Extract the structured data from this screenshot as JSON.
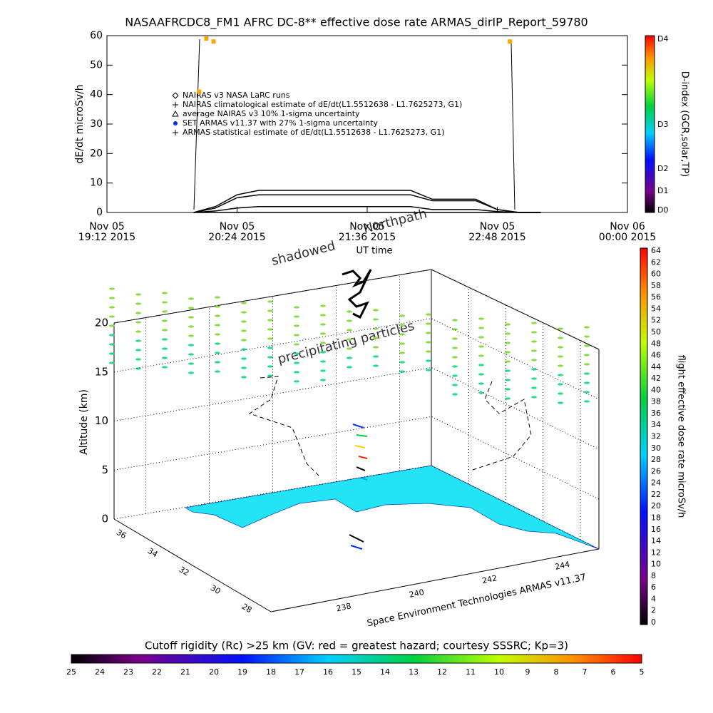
{
  "chart_data": [
    {
      "type": "line",
      "title": "NASAAFRCDC8_FM1 AFRC DC-8** effective dose rate ARMAS_dirIP_Report_59780",
      "ylabel": "dE/dt microSv/h",
      "xlabel": "UT time",
      "xlim": [
        "2015-11-05T19:12",
        "2015-11-06T00:00"
      ],
      "xticks": [
        {
          "value": "2015-11-05T19:12",
          "label": [
            "Nov 05",
            "19:12 2015"
          ]
        },
        {
          "value": "2015-11-05T20:24",
          "label": [
            "Nov 05",
            "20:24 2015"
          ]
        },
        {
          "value": "2015-11-05T21:36",
          "label": [
            "Nov 05",
            "21:36 2015"
          ]
        },
        {
          "value": "2015-11-05T22:48",
          "label": [
            "Nov 05",
            "22:48 2015"
          ]
        },
        {
          "value": "2015-11-06T00:00",
          "label": [
            "Nov 06",
            "00:00 2015"
          ]
        }
      ],
      "ylim": [
        0,
        60
      ],
      "yticks": [
        0,
        10,
        20,
        30,
        40,
        50,
        60
      ],
      "x": [
        "2015-11-05T20:00",
        "2015-11-05T20:12",
        "2015-11-05T20:24",
        "2015-11-05T20:36",
        "2015-11-05T20:48",
        "2015-11-05T21:00",
        "2015-11-05T21:12",
        "2015-11-05T21:24",
        "2015-11-05T21:36",
        "2015-11-05T21:48",
        "2015-11-05T22:00",
        "2015-11-05T22:12",
        "2015-11-05T22:24",
        "2015-11-05T22:36",
        "2015-11-05T22:48",
        "2015-11-05T23:00",
        "2015-11-05T23:12"
      ],
      "series": [
        {
          "name": "NAIRAS v3 NASA LaRC runs",
          "color": "#000000",
          "values": [
            0,
            1.5,
            5,
            6,
            6,
            6,
            6,
            6,
            6,
            6,
            6,
            4,
            4,
            4,
            1,
            0,
            0
          ]
        },
        {
          "name": "NAIRAS climatological estimate of dE/dt(L1.5512638 - L1.7625273, G1)",
          "color": "#000000",
          "values": [
            0,
            2,
            6,
            7.5,
            7.5,
            7.5,
            7.5,
            7.5,
            7.5,
            7.5,
            7.5,
            4.5,
            4.5,
            4.5,
            1,
            0,
            0
          ]
        },
        {
          "name": "average NAIRAS v3 10% 1-sigma uncertainty",
          "color": "#000000",
          "values": [
            0,
            0.5,
            1.5,
            2,
            2,
            2,
            2,
            2,
            2,
            2,
            2,
            1,
            1,
            1,
            0.3,
            0,
            0
          ]
        },
        {
          "name": "SET ARMAS v11.37 with 27% 1-sigma uncertainty",
          "color": "#ffa500",
          "x": [
            "2015-11-05T20:03",
            "2015-11-05T20:07",
            "2015-11-05T20:11",
            "2015-11-05T22:55"
          ],
          "values": [
            41,
            59,
            58,
            58
          ]
        },
        {
          "name": "ARMAS statistical estimate of dE/dt(L1.5512638 - L1.7625273, G1)",
          "color": "#000000",
          "values": [
            0,
            0,
            0,
            0,
            0,
            0,
            0,
            0,
            0,
            0,
            0,
            0,
            0,
            0,
            0,
            0,
            0
          ]
        }
      ],
      "colorbar": {
        "label": "D-index (GCR,solar,TP)",
        "ticks": [
          "D0",
          "D1",
          "D2",
          "D3",
          "D4"
        ]
      }
    },
    {
      "type": "scatter3d",
      "zlabel": "Altitude (km)",
      "zlim": [
        0,
        20
      ],
      "zticks": [
        0,
        5,
        10,
        15,
        20
      ],
      "ylim": [
        37,
        27
      ],
      "yticks": [
        36,
        34,
        32,
        30,
        28
      ],
      "xlim": [
        236,
        245
      ],
      "xticks": [
        238,
        240,
        242,
        244
      ],
      "annotations": [
        "shadowed",
        "Northpath",
        "precipitating particles"
      ],
      "credit": "Space Environment Technologies ARMAS v11.37",
      "colorbar": {
        "label": "flight effective dose rate microSv/h",
        "lim": [
          0,
          64
        ],
        "ticks": [
          0,
          2,
          4,
          6,
          8,
          10,
          12,
          14,
          16,
          18,
          20,
          22,
          24,
          26,
          28,
          30,
          32,
          34,
          36,
          38,
          40,
          42,
          44,
          46,
          48,
          50,
          52,
          54,
          56,
          58,
          60,
          62,
          64
        ]
      },
      "rigidity_bar": {
        "label": "Cutoff rigidity (Rc) >25 km (GV: red = greatest hazard; courtesy SSSRC; Kp=3)",
        "lim": [
          25,
          5
        ],
        "ticks": [
          25,
          24,
          23,
          22,
          21,
          20,
          19,
          18,
          17,
          16,
          15,
          14,
          13,
          12,
          11,
          10,
          9,
          8,
          7,
          6,
          5
        ]
      }
    }
  ]
}
